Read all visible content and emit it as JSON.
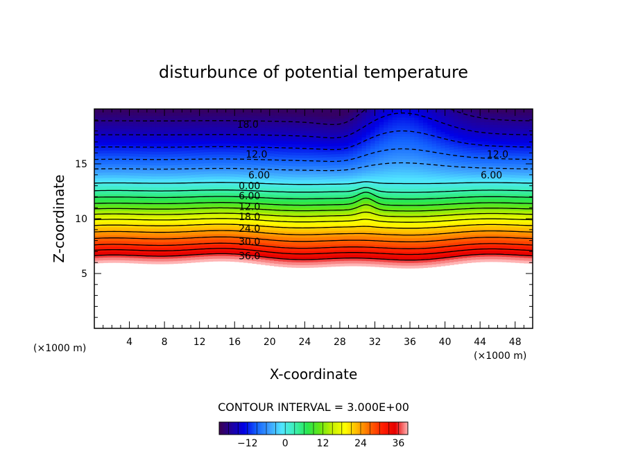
{
  "chart_data": {
    "type": "heatmap",
    "title": "disturbunce of potential temperature",
    "xlabel": "X-coordinate",
    "ylabel": "Z-coordinate",
    "x_unit_left": "(×1000 m)",
    "x_unit_right": "(×1000 m)",
    "xlim": [
      0,
      50
    ],
    "ylim": [
      0,
      20
    ],
    "x_ticks": [
      4,
      8,
      12,
      16,
      20,
      24,
      28,
      32,
      36,
      40,
      44,
      48
    ],
    "y_ticks": [
      5,
      10,
      15
    ],
    "contour_interval": "CONTOUR INTERVAL = 3.000E+00",
    "colorbar": {
      "min": -21,
      "max": 39,
      "ticks": [
        -12,
        0,
        12,
        24,
        36
      ],
      "tick_labels": [
        "−12",
        "0",
        "12",
        "24",
        "36"
      ],
      "colors": [
        "#3c0050",
        "#1e00a0",
        "#0000e6",
        "#1464ff",
        "#3ca0ff",
        "#50e6ff",
        "#3cf0b4",
        "#28e650",
        "#64e614",
        "#c8f000",
        "#ffff00",
        "#ffb400",
        "#ff6400",
        "#ff1e00",
        "#e60000",
        "#ffb4b4"
      ]
    },
    "base_profile": {
      "z": [
        6,
        6.5,
        7.5,
        8.5,
        9.5,
        10.5,
        11.5,
        12.5,
        13.2,
        14,
        15,
        16.5,
        18,
        19.8
      ],
      "theta": [
        39,
        36,
        30,
        25,
        20,
        14,
        8,
        3,
        0,
        -4,
        -8,
        -12,
        -16,
        -20
      ]
    },
    "contour_labels": [
      {
        "text": "18.0",
        "x": 17.5,
        "z": 18.6
      },
      {
        "text": "12.0",
        "x": 18.5,
        "z": 15.9
      },
      {
        "text": "6.00",
        "x": 18.8,
        "z": 14.0
      },
      {
        "text": "0.00",
        "x": 17.7,
        "z": 13.0
      },
      {
        "text": "6.00",
        "x": 17.7,
        "z": 12.1
      },
      {
        "text": "12.0",
        "x": 17.7,
        "z": 11.1
      },
      {
        "text": "18.0",
        "x": 17.7,
        "z": 10.2
      },
      {
        "text": "24.0",
        "x": 17.7,
        "z": 9.1
      },
      {
        "text": "30.0",
        "x": 17.7,
        "z": 7.9
      },
      {
        "text": "36.0",
        "x": 17.7,
        "z": 6.6
      },
      {
        "text": "12.0",
        "x": 46.0,
        "z": 15.9
      },
      {
        "text": "6.00",
        "x": 45.3,
        "z": 14.0
      }
    ],
    "negative_contours": [
      -6,
      -9,
      -12,
      -15,
      -18
    ],
    "positive_contours": [
      0,
      3,
      6,
      9,
      12,
      15,
      18,
      21,
      24,
      27,
      30,
      33,
      36
    ]
  }
}
